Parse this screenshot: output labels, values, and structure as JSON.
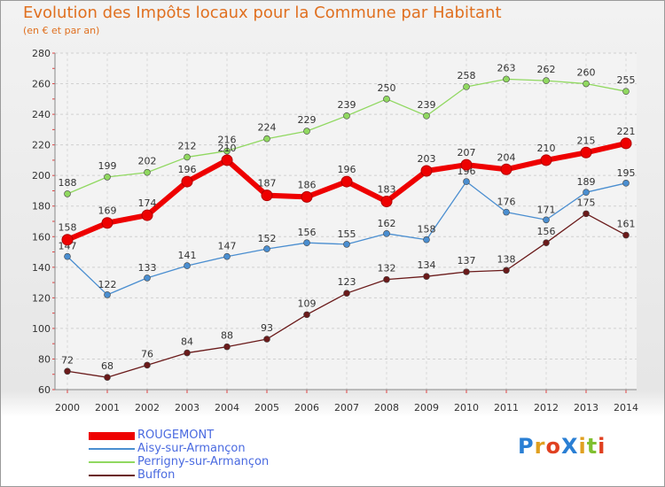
{
  "title": "Evolution des Impôts locaux pour la Commune par Habitant",
  "subtitle": "(en € et par an)",
  "logo": {
    "text": "ProXiti",
    "colors": [
      "#2a7fd4",
      "#e0a020",
      "#e04020",
      "#2a7fd4",
      "#e0a020",
      "#80c030",
      "#e04020"
    ]
  },
  "chart_data": {
    "type": "line",
    "x": [
      2000,
      2001,
      2002,
      2003,
      2004,
      2005,
      2006,
      2007,
      2008,
      2009,
      2010,
      2011,
      2012,
      2013,
      2014
    ],
    "ylim": [
      60,
      280
    ],
    "yticks": [
      60,
      80,
      100,
      120,
      140,
      160,
      180,
      200,
      220,
      240,
      260,
      280
    ],
    "grid": true,
    "legend_position": "bottom-left",
    "series": [
      {
        "name": "ROUGEMONT",
        "color": "#ee0000",
        "values": [
          158,
          169,
          174,
          196,
          210,
          187,
          186,
          196,
          183,
          203,
          207,
          204,
          210,
          215,
          221
        ]
      },
      {
        "name": "Aisy-sur-Armançon",
        "color": "#4a8ed0",
        "values": [
          147,
          122,
          133,
          141,
          147,
          152,
          156,
          155,
          162,
          158,
          196,
          176,
          171,
          189,
          195
        ]
      },
      {
        "name": "Perrigny-sur-Armançon",
        "color": "#90d860",
        "values": [
          188,
          199,
          202,
          212,
          216,
          224,
          229,
          239,
          250,
          239,
          258,
          263,
          262,
          260,
          255
        ]
      },
      {
        "name": "Buffon",
        "color": "#6a1a1a",
        "values": [
          72,
          68,
          76,
          84,
          88,
          93,
          109,
          123,
          132,
          134,
          137,
          138,
          156,
          175,
          161
        ]
      }
    ]
  }
}
